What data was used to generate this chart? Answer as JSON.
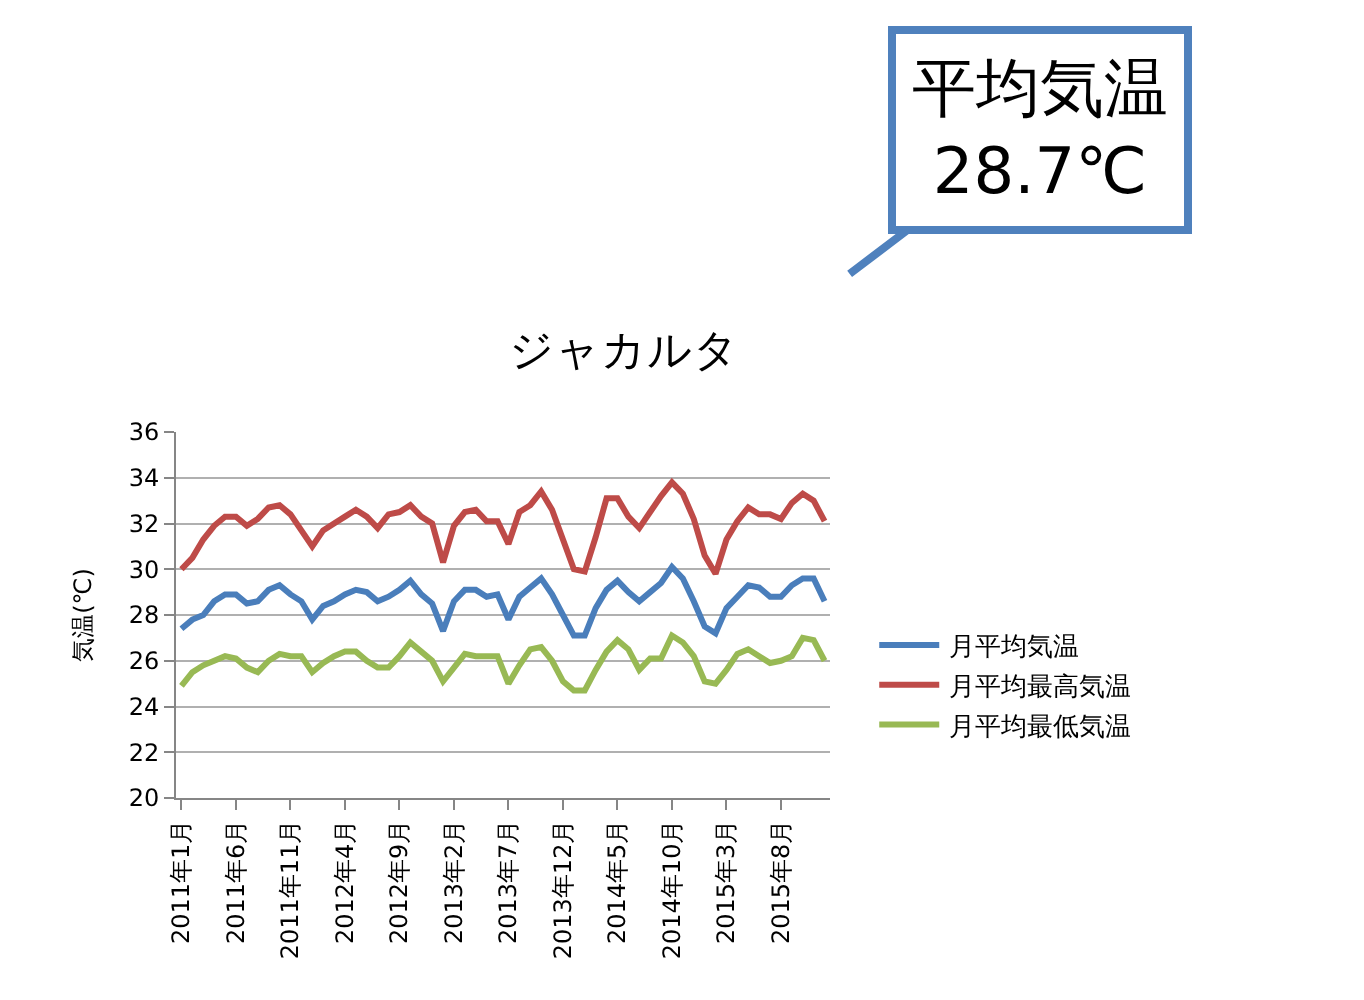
{
  "chart_data": {
    "type": "line",
    "title": "ジャカルタ",
    "ylabel": "気温(℃)",
    "categories": [
      "2011年1月",
      null,
      null,
      null,
      null,
      "2011年6月",
      null,
      null,
      null,
      null,
      "2011年11月",
      null,
      null,
      null,
      null,
      "2012年4月",
      null,
      null,
      null,
      null,
      "2012年9月",
      null,
      null,
      null,
      null,
      "2013年2月",
      null,
      null,
      null,
      null,
      "2013年7月",
      null,
      null,
      null,
      null,
      "2013年12月",
      null,
      null,
      null,
      null,
      "2014年5月",
      null,
      null,
      null,
      null,
      "2014年10月",
      null,
      null,
      null,
      null,
      "2015年3月",
      null,
      null,
      null,
      null,
      "2015年8月",
      null,
      null,
      null,
      null
    ],
    "series": [
      {
        "name": "月平均気温",
        "color": "#4a7ebb",
        "values": [
          27.4,
          27.8,
          28.0,
          28.6,
          28.9,
          28.9,
          28.5,
          28.6,
          29.1,
          29.3,
          28.9,
          28.6,
          27.8,
          28.4,
          28.6,
          28.9,
          29.1,
          29.0,
          28.6,
          28.8,
          29.1,
          29.5,
          28.9,
          28.5,
          27.3,
          28.6,
          29.1,
          29.1,
          28.8,
          28.9,
          27.8,
          28.8,
          29.2,
          29.6,
          28.9,
          28.0,
          27.1,
          27.1,
          28.3,
          29.1,
          29.5,
          29.0,
          28.6,
          29.0,
          29.4,
          30.1,
          29.6,
          28.6,
          27.5,
          27.2,
          28.3,
          28.8,
          29.3,
          29.2,
          28.8,
          28.8,
          29.3,
          29.6,
          29.6,
          28.6
        ]
      },
      {
        "name": "月平均最高気温",
        "color": "#be4b48",
        "values": [
          30.0,
          30.5,
          31.3,
          31.9,
          32.3,
          32.3,
          31.9,
          32.2,
          32.7,
          32.8,
          32.4,
          31.7,
          31.0,
          31.7,
          32.0,
          32.3,
          32.6,
          32.3,
          31.8,
          32.4,
          32.5,
          32.8,
          32.3,
          32.0,
          30.3,
          31.9,
          32.5,
          32.6,
          32.1,
          32.1,
          31.1,
          32.5,
          32.8,
          33.4,
          32.6,
          31.3,
          30.0,
          29.9,
          31.4,
          33.1,
          33.1,
          32.3,
          31.8,
          32.5,
          33.2,
          33.8,
          33.3,
          32.2,
          30.6,
          29.8,
          31.3,
          32.1,
          32.7,
          32.4,
          32.4,
          32.2,
          32.9,
          33.3,
          33.0,
          32.1
        ]
      },
      {
        "name": "月平均最低気温",
        "color": "#98b954",
        "values": [
          24.9,
          25.5,
          25.8,
          26.0,
          26.2,
          26.1,
          25.7,
          25.5,
          26.0,
          26.3,
          26.2,
          26.2,
          25.5,
          25.9,
          26.2,
          26.4,
          26.4,
          26.0,
          25.7,
          25.7,
          26.2,
          26.8,
          26.4,
          26.0,
          25.1,
          25.7,
          26.3,
          26.2,
          26.2,
          26.2,
          25.0,
          25.8,
          26.5,
          26.6,
          26.0,
          25.1,
          24.7,
          24.7,
          25.6,
          26.4,
          26.9,
          26.5,
          25.6,
          26.1,
          26.1,
          27.1,
          26.8,
          26.2,
          25.1,
          25.0,
          25.6,
          26.3,
          26.5,
          26.2,
          25.9,
          26.0,
          26.2,
          27.0,
          26.9,
          26.0
        ]
      }
    ],
    "ylim": [
      20,
      36
    ],
    "yticks": [
      20,
      22,
      24,
      26,
      28,
      30,
      32,
      34,
      36
    ],
    "grid": "y",
    "legend": "right",
    "marker": "none",
    "line_style": "solid",
    "annotations": [
      "平均気温\n28.7℃"
    ]
  }
}
